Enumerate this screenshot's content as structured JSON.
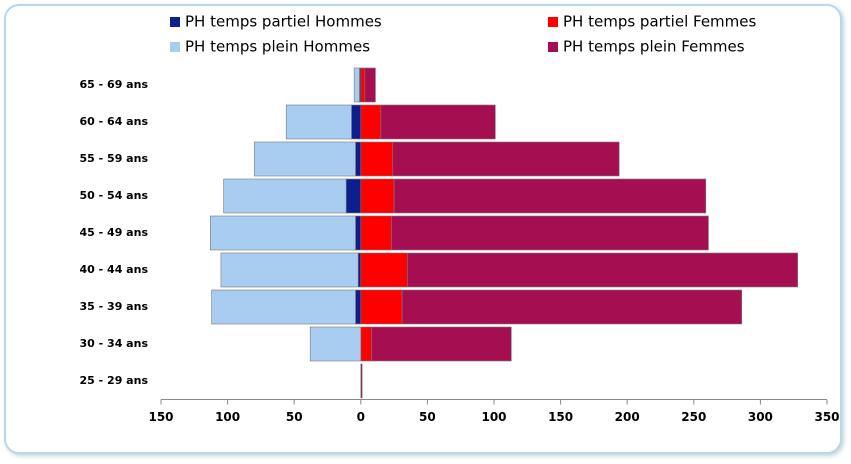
{
  "chart_data": {
    "type": "bar",
    "orientation": "horizontal",
    "stacked": true,
    "categories": [
      "65 - 69 ans",
      "60 - 64 ans",
      "55 - 59 ans",
      "50 - 54 ans",
      "45 - 49 ans",
      "40 - 44 ans",
      "35 - 39 ans",
      "30 - 34 ans",
      "25 - 29 ans"
    ],
    "series": [
      {
        "name": "PH temps partiel Hommes",
        "color": "#0d1f8f",
        "values": [
          -1,
          -7,
          -4,
          -11,
          -4,
          -2,
          -4,
          0,
          0
        ]
      },
      {
        "name": "PH temps partiel Femmes",
        "color": "#ff0000",
        "values": [
          3,
          15,
          24,
          25,
          23,
          35,
          31,
          8,
          0
        ]
      },
      {
        "name": "PH temps plein Hommes",
        "color": "#a9cdf0",
        "values": [
          -4,
          -49,
          -76,
          -92,
          -109,
          -103,
          -108,
          -38,
          0
        ]
      },
      {
        "name": "PH temps plein Femmes",
        "color": "#a50f52",
        "values": [
          8,
          86,
          170,
          234,
          238,
          293,
          255,
          105,
          1
        ]
      }
    ],
    "xlim": [
      -150,
      350
    ],
    "xticks": [
      {
        "value": -150,
        "label": "150"
      },
      {
        "value": -100,
        "label": "100"
      },
      {
        "value": -50,
        "label": "50"
      },
      0,
      50,
      100,
      150,
      200,
      250,
      300,
      350
    ],
    "grid": false,
    "legend": "top"
  }
}
